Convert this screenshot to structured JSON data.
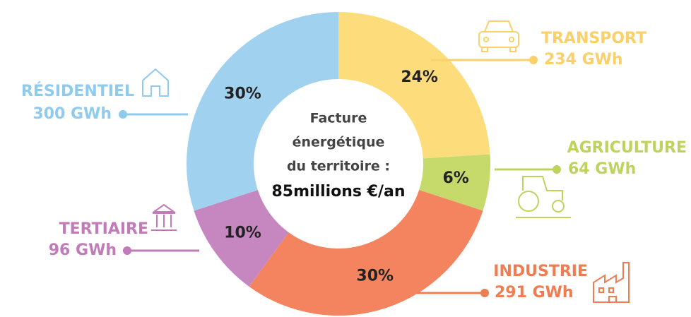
{
  "chart_data": {
    "type": "pie",
    "donut": true,
    "categories": [
      "TRANSPORT",
      "AGRICULTURE",
      "INDUSTRIE",
      "TERTIAIRE",
      "RÉSIDENTIEL"
    ],
    "values": [
      24,
      6,
      30,
      10,
      30
    ],
    "value_labels": [
      "24%",
      "6%",
      "30%",
      "10%",
      "30%"
    ],
    "energy_labels": [
      "234 GWh",
      "64 GWh",
      "291 GWh",
      "96 GWh",
      "300 GWh"
    ],
    "colors": [
      "#fddc7c",
      "#c6da6c",
      "#f4845f",
      "#c687c1",
      "#a0d2f0"
    ],
    "label_colors": [
      "#f9d06a",
      "#bcd35e",
      "#f07c52",
      "#c27ab9",
      "#8fcbee"
    ],
    "center_text": [
      "Facture",
      "énergétique",
      "du territoire :"
    ],
    "center_value": "85millions €/an"
  }
}
